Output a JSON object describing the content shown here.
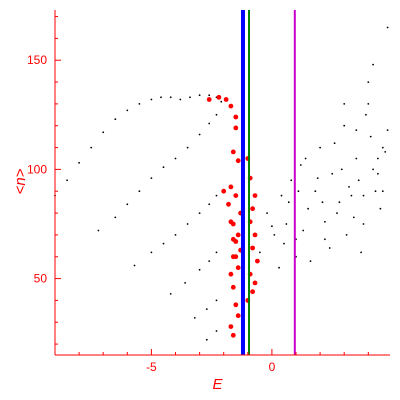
{
  "chart_data": {
    "type": "scatter",
    "title": "",
    "xlabel": "E",
    "ylabel": "<n>",
    "xlim": [
      -9.0,
      4.9
    ],
    "ylim": [
      15,
      173
    ],
    "x_ticks": [
      -5,
      0
    ],
    "y_ticks": [
      50,
      100,
      150
    ],
    "grid": false,
    "colors": {
      "axis": "#ff0000",
      "black_points": "#000000",
      "red_points": "#ff0000",
      "line_blue": "#0000ff",
      "line_green": "#008000",
      "line_magenta": "#cc00cc"
    },
    "vertical_lines": [
      {
        "x": -1.2,
        "color": "#0000ff",
        "width": "thick"
      },
      {
        "x": -0.95,
        "color": "#008000",
        "width": "thin"
      },
      {
        "x": 0.95,
        "color": "#cc00cc",
        "width": "thin"
      }
    ],
    "series": [
      {
        "color": "#000000",
        "size": "small",
        "x": [
          -9.0,
          -8.5,
          -8.0,
          -7.5,
          -7.0,
          -6.5,
          -6.0,
          -5.5,
          -5.0,
          -4.6,
          -4.2,
          -3.8,
          -3.4,
          -3.0,
          -2.6,
          -2.3,
          -2.1,
          -7.2,
          -6.5,
          -6.0,
          -5.5,
          -5.0,
          -4.5,
          -4.0,
          -3.5,
          -3.0,
          -2.6,
          -2.3,
          -5.7,
          -5.0,
          -4.5,
          -4.0,
          -3.5,
          -3.0,
          -2.6,
          -2.3,
          -4.2,
          -3.6,
          -3.0,
          -2.6,
          -2.3,
          -3.2,
          -2.7,
          -2.3,
          -2.7,
          -2.3
        ],
        "y": [
          88,
          95,
          103,
          110,
          117,
          123,
          127,
          130,
          132,
          133,
          133,
          132,
          133,
          134,
          134,
          133,
          131,
          72,
          78,
          84,
          90,
          96,
          101,
          105,
          110,
          116,
          121,
          125,
          56,
          62,
          66,
          70,
          75,
          80,
          84,
          88,
          43,
          48,
          54,
          58,
          62,
          32,
          36,
          40,
          22,
          26
        ]
      },
      {
        "color": "#000000",
        "size": "small",
        "x": [
          -0.5,
          -0.2,
          0.1,
          0.4,
          0.6,
          0.8,
          1.0,
          1.2,
          1.5,
          1.8,
          2.0,
          2.2,
          2.5,
          2.8,
          3.0,
          3.2,
          3.5,
          3.8,
          4.1,
          4.4,
          4.7,
          0.3,
          0.7,
          1.3,
          1.9,
          2.4,
          2.9,
          3.4,
          3.9,
          4.3,
          4.6,
          0.0,
          0.5,
          1.1,
          1.6,
          2.1,
          2.6,
          3.1,
          3.6,
          4.0,
          4.5,
          1.0,
          1.4,
          2.2,
          2.7,
          3.3,
          3.7,
          4.2,
          4.8,
          3.0,
          3.5,
          4.0,
          4.4,
          4.8,
          3.8,
          4.6,
          4.2
        ],
        "y": [
          62,
          80,
          70,
          88,
          75,
          95,
          68,
          102,
          82,
          90,
          110,
          76,
          98,
          85,
          120,
          92,
          105,
          88,
          115,
          98,
          108,
          55,
          85,
          72,
          96,
          64,
          100,
          78,
          125,
          90,
          110,
          74,
          66,
          90,
          58,
          85,
          112,
          70,
          95,
          130,
          82,
          60,
          105,
          68,
          80,
          88,
          62,
          100,
          118,
          130,
          118,
          140,
          105,
          165,
          75,
          90,
          148
        ]
      },
      {
        "color": "#ff0000",
        "size": "large",
        "x": [
          -2.6,
          -2.2,
          -1.9,
          -1.7,
          -1.5,
          -1.5,
          -1.6,
          -1.4,
          -1.7,
          -1.5,
          -1.3,
          -1.6,
          -1.4,
          -1.5,
          -1.3,
          -1.6,
          -1.4,
          -1.0,
          -0.9,
          -0.7,
          -0.8,
          -0.9,
          -0.7,
          -0.8,
          -0.6,
          -0.9,
          -0.7,
          -0.8,
          -1.0,
          -2.0,
          -1.8,
          -1.7,
          -1.6,
          -1.5,
          -1.7,
          -1.6,
          -1.5,
          -1.4,
          -1.7,
          -1.6
        ],
        "y": [
          132,
          133,
          132,
          129,
          124,
          119,
          108,
          104,
          92,
          88,
          80,
          75,
          70,
          67,
          63,
          60,
          55,
          105,
          96,
          88,
          82,
          76,
          70,
          64,
          58,
          52,
          48,
          44,
          40,
          90,
          84,
          76,
          68,
          60,
          52,
          46,
          38,
          33,
          28,
          24
        ]
      }
    ]
  }
}
